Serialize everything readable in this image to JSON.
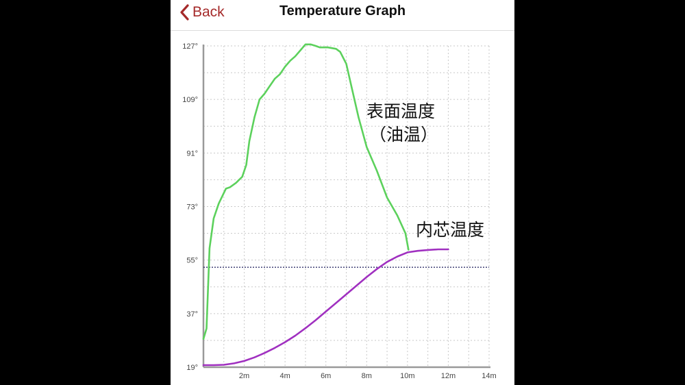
{
  "nav": {
    "back_label": "Back",
    "title": "Temperature Graph"
  },
  "colors": {
    "accent": "#a52a2a",
    "surface_line": "#5cd15c",
    "core_line": "#a030c0",
    "threshold_line": "#1a1a5a"
  },
  "chart_data": {
    "type": "line",
    "title": "",
    "xlabel": "",
    "ylabel": "",
    "xlim": [
      0,
      14
    ],
    "ylim": [
      19,
      127
    ],
    "x_ticks": [
      2,
      4,
      6,
      8,
      10,
      12,
      14
    ],
    "x_tick_labels": [
      "2m",
      "4m",
      "6m",
      "8m",
      "10m",
      "12m",
      "14m"
    ],
    "y_ticks": [
      19,
      37,
      55,
      73,
      91,
      109,
      127
    ],
    "y_tick_labels": [
      "19°",
      "37°",
      "55°",
      "73°",
      "91°",
      "109°",
      "127°"
    ],
    "grid": true,
    "threshold": 52.6,
    "series": [
      {
        "name": "表面温度",
        "annotation": [
          "表面温度",
          "（油温）"
        ],
        "color": "#5cd15c",
        "x": [
          0,
          0.15,
          0.3,
          0.5,
          0.75,
          1.1,
          1.3,
          1.6,
          1.75,
          1.9,
          2.1,
          2.25,
          2.5,
          2.75,
          3.0,
          3.25,
          3.5,
          3.75,
          4.0,
          4.25,
          4.5,
          4.75,
          5.0,
          5.25,
          5.5,
          5.7,
          5.8,
          6.1,
          6.5,
          6.7,
          7.0,
          7.3,
          7.6,
          8.0,
          8.5,
          9.0,
          9.5,
          9.9,
          10.05
        ],
        "y": [
          28.5,
          32,
          59,
          69,
          74,
          79,
          79.5,
          81,
          82,
          83,
          87,
          95,
          103,
          109,
          111,
          113.5,
          116,
          117.5,
          120,
          122,
          123.5,
          125.5,
          127.5,
          127.5,
          127,
          126.5,
          126.5,
          126.5,
          126,
          125,
          121,
          112,
          103,
          93,
          85,
          76,
          70,
          64,
          58.5
        ]
      },
      {
        "name": "内芯温度",
        "annotation": [
          "内芯温度"
        ],
        "color": "#a030c0",
        "x": [
          0,
          0.5,
          1.0,
          1.5,
          2.0,
          2.5,
          3.0,
          3.5,
          4.0,
          4.5,
          5.0,
          5.5,
          6.0,
          6.5,
          7.0,
          7.5,
          8.0,
          8.5,
          9.0,
          9.5,
          10.0,
          10.5,
          11.0,
          11.5,
          12.0
        ],
        "y": [
          19.7,
          19.7,
          19.8,
          20.3,
          21.1,
          22.3,
          23.8,
          25.5,
          27.4,
          29.6,
          32.1,
          34.8,
          37.7,
          40.6,
          43.5,
          46.4,
          49.3,
          52.0,
          54.4,
          56.2,
          57.6,
          58.1,
          58.4,
          58.6,
          58.6
        ]
      }
    ]
  }
}
